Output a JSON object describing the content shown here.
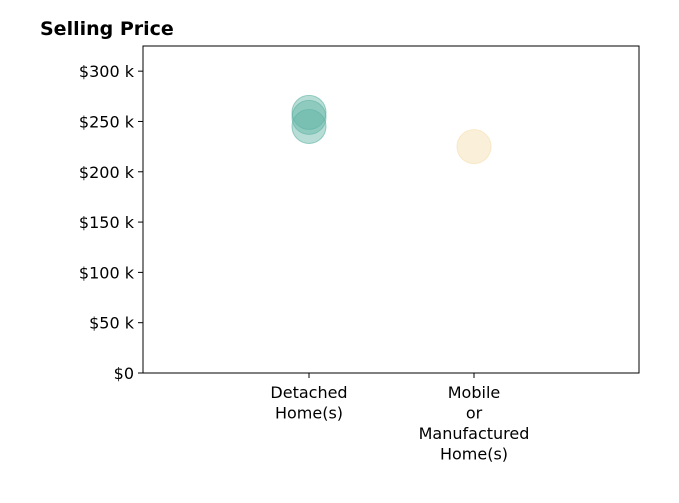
{
  "chart_data": {
    "type": "scatter",
    "title": "Selling Price",
    "xlabel": "",
    "ylabel": "",
    "categories": [
      [
        "Detached",
        "Home(s)"
      ],
      [
        "Mobile",
        "or",
        "Manufactured",
        "Home(s)"
      ]
    ],
    "ylim": [
      0,
      325000
    ],
    "yticks": [
      0,
      50000,
      100000,
      150000,
      200000,
      250000,
      300000
    ],
    "ytick_labels": [
      "$0",
      "$50 k",
      "$100 k",
      "$150 k",
      "$200 k",
      "$250 k",
      "$300 k"
    ],
    "grid": false,
    "points": [
      {
        "category": 0,
        "y": 245000,
        "color": "#5fb3a3"
      },
      {
        "category": 0,
        "y": 254000,
        "color": "#5fb3a3"
      },
      {
        "category": 0,
        "y": 259000,
        "color": "#5fb3a3"
      },
      {
        "category": 1,
        "y": 225000,
        "color": "#f4deac"
      }
    ]
  }
}
